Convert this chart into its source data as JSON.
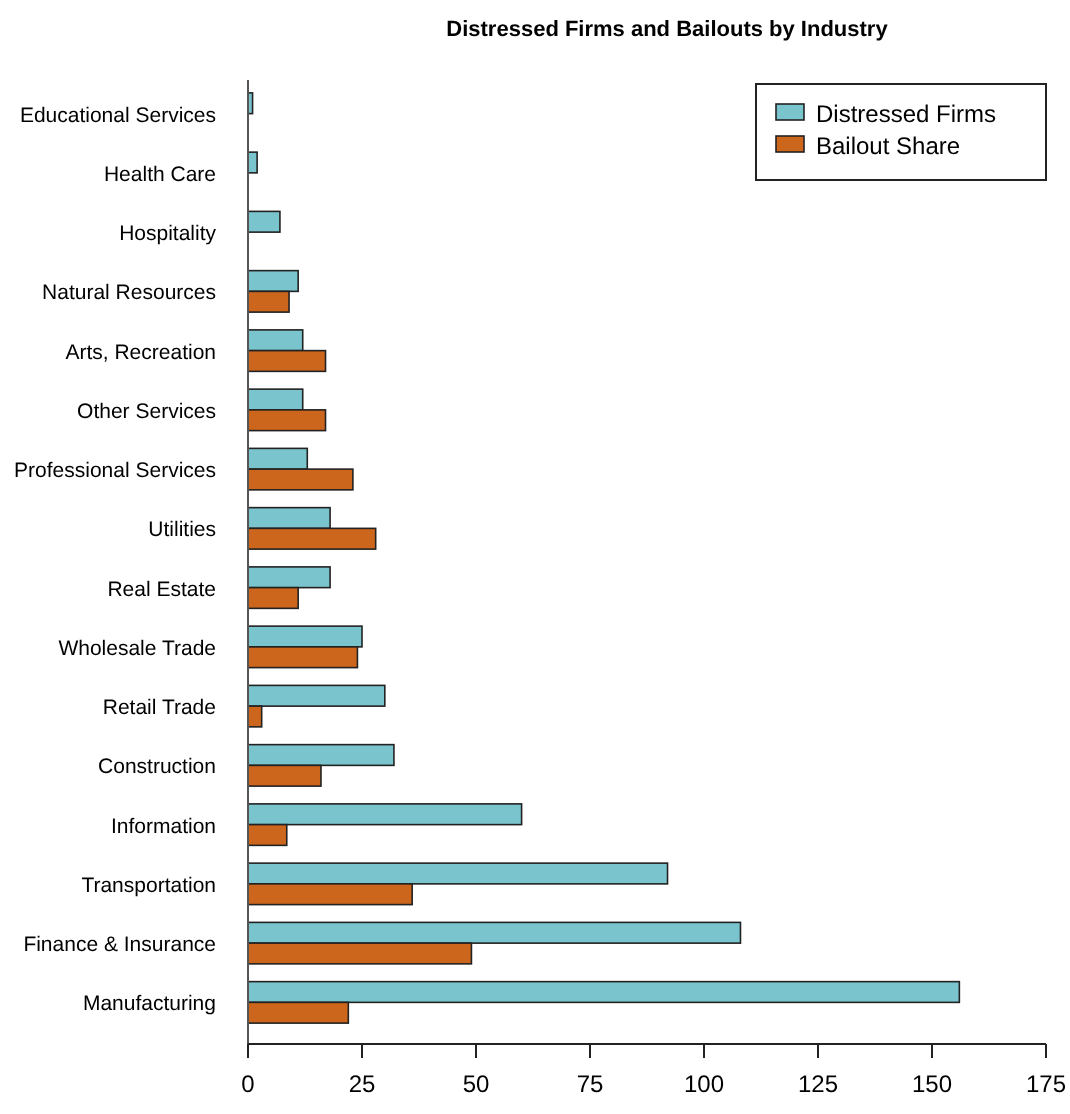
{
  "chart_data": {
    "type": "bar",
    "orientation": "horizontal",
    "title": "Distressed Firms and Bailouts by Industry",
    "categories": [
      "Educational Services",
      "Health Care",
      "Hospitality",
      "Natural Resources",
      "Arts, Recreation",
      "Other Services",
      "Professional Services",
      "Utilities",
      "Real Estate",
      "Wholesale Trade",
      "Retail Trade",
      "Construction",
      "Information",
      "Transportation",
      "Finance & Insurance",
      "Manufacturing"
    ],
    "series": [
      {
        "name": "Distressed Firms",
        "color": "#7ac5cd",
        "values": [
          1,
          2,
          7,
          11,
          12,
          12,
          13,
          18,
          18,
          25,
          30,
          32,
          60,
          92,
          108,
          156
        ]
      },
      {
        "name": "Bailout Share",
        "color": "#cd661d",
        "values": [
          0,
          0,
          0,
          9,
          17,
          17,
          23,
          28,
          11,
          24,
          3,
          16,
          8.5,
          36,
          49,
          22
        ]
      }
    ],
    "xlim": [
      0,
      175
    ],
    "xticks": [
      0,
      25,
      50,
      75,
      100,
      125,
      150,
      175
    ],
    "legend": "top right",
    "grid": false
  }
}
